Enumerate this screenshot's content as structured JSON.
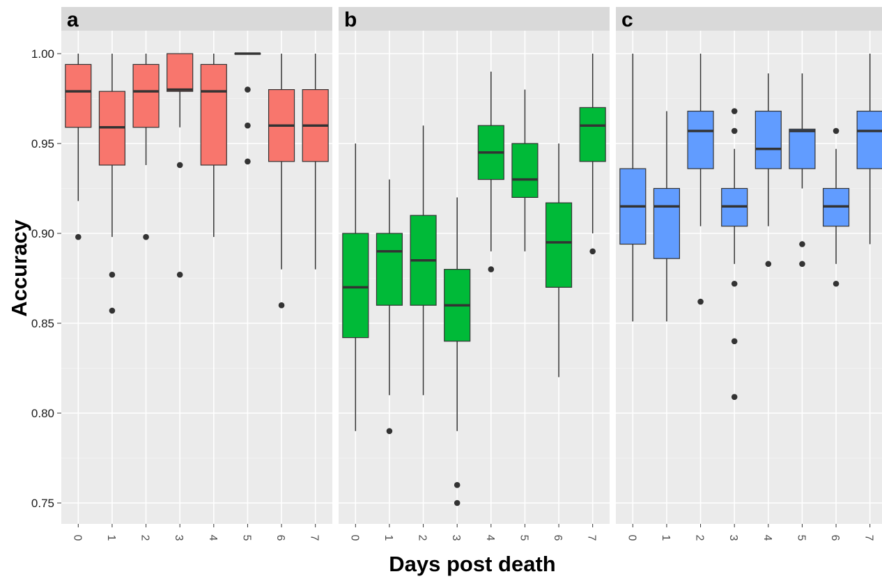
{
  "chart_data": {
    "type": "box",
    "xlabel": "Days post death",
    "ylabel": "Accuracy",
    "ylim": [
      0.74,
      1.025
    ],
    "yticks": [
      0.75,
      0.8,
      0.85,
      0.9,
      0.95,
      1.0
    ],
    "ytick_labels": [
      "0.75",
      "0.80",
      "0.85",
      "0.90",
      "0.95",
      "1.00"
    ],
    "categories": [
      "0",
      "1",
      "2",
      "3",
      "4",
      "5",
      "6",
      "7"
    ],
    "grid": true,
    "panels": [
      {
        "label": "a",
        "color": "#F8766D",
        "boxes": [
          {
            "x": "0",
            "whisker_low": 0.918,
            "q1": 0.959,
            "median": 0.979,
            "q3": 0.994,
            "whisker_high": 1.0,
            "outliers": [
              0.898
            ]
          },
          {
            "x": "1",
            "whisker_low": 0.898,
            "q1": 0.938,
            "median": 0.959,
            "q3": 0.979,
            "whisker_high": 1.0,
            "outliers": [
              0.877,
              0.857
            ]
          },
          {
            "x": "2",
            "whisker_low": 0.938,
            "q1": 0.959,
            "median": 0.979,
            "q3": 0.994,
            "whisker_high": 1.0,
            "outliers": [
              0.898
            ]
          },
          {
            "x": "3",
            "whisker_low": 0.959,
            "q1": 0.979,
            "median": 0.98,
            "q3": 1.0,
            "whisker_high": 1.0,
            "outliers": [
              0.938,
              0.877
            ]
          },
          {
            "x": "4",
            "whisker_low": 0.898,
            "q1": 0.938,
            "median": 0.979,
            "q3": 0.994,
            "whisker_high": 1.0,
            "outliers": []
          },
          {
            "x": "5",
            "whisker_low": 1.0,
            "q1": 1.0,
            "median": 1.0,
            "q3": 1.0,
            "whisker_high": 1.0,
            "outliers": [
              0.98,
              0.96,
              0.94
            ]
          },
          {
            "x": "6",
            "whisker_low": 0.88,
            "q1": 0.94,
            "median": 0.96,
            "q3": 0.98,
            "whisker_high": 1.0,
            "outliers": [
              0.86
            ]
          },
          {
            "x": "7",
            "whisker_low": 0.88,
            "q1": 0.94,
            "median": 0.96,
            "q3": 0.98,
            "whisker_high": 1.0,
            "outliers": []
          }
        ]
      },
      {
        "label": "b",
        "color": "#00BA38",
        "boxes": [
          {
            "x": "0",
            "whisker_low": 0.79,
            "q1": 0.842,
            "median": 0.87,
            "q3": 0.9,
            "whisker_high": 0.95,
            "outliers": []
          },
          {
            "x": "1",
            "whisker_low": 0.81,
            "q1": 0.86,
            "median": 0.89,
            "q3": 0.9,
            "whisker_high": 0.93,
            "outliers": [
              0.79
            ]
          },
          {
            "x": "2",
            "whisker_low": 0.81,
            "q1": 0.86,
            "median": 0.885,
            "q3": 0.91,
            "whisker_high": 0.96,
            "outliers": []
          },
          {
            "x": "3",
            "whisker_low": 0.79,
            "q1": 0.84,
            "median": 0.86,
            "q3": 0.88,
            "whisker_high": 0.92,
            "outliers": [
              0.76,
              0.75
            ]
          },
          {
            "x": "4",
            "whisker_low": 0.89,
            "q1": 0.93,
            "median": 0.945,
            "q3": 0.96,
            "whisker_high": 0.99,
            "outliers": [
              0.88
            ]
          },
          {
            "x": "5",
            "whisker_low": 0.89,
            "q1": 0.92,
            "median": 0.93,
            "q3": 0.95,
            "whisker_high": 0.98,
            "outliers": []
          },
          {
            "x": "6",
            "whisker_low": 0.82,
            "q1": 0.87,
            "median": 0.895,
            "q3": 0.917,
            "whisker_high": 0.95,
            "outliers": []
          },
          {
            "x": "7",
            "whisker_low": 0.9,
            "q1": 0.94,
            "median": 0.96,
            "q3": 0.97,
            "whisker_high": 1.0,
            "outliers": [
              0.89
            ]
          }
        ]
      },
      {
        "label": "c",
        "color": "#619CFF",
        "boxes": [
          {
            "x": "0",
            "whisker_low": 0.851,
            "q1": 0.894,
            "median": 0.915,
            "q3": 0.936,
            "whisker_high": 1.0,
            "outliers": []
          },
          {
            "x": "1",
            "whisker_low": 0.851,
            "q1": 0.886,
            "median": 0.915,
            "q3": 0.925,
            "whisker_high": 0.968,
            "outliers": []
          },
          {
            "x": "2",
            "whisker_low": 0.904,
            "q1": 0.936,
            "median": 0.957,
            "q3": 0.968,
            "whisker_high": 1.0,
            "outliers": [
              0.862
            ]
          },
          {
            "x": "3",
            "whisker_low": 0.883,
            "q1": 0.904,
            "median": 0.915,
            "q3": 0.925,
            "whisker_high": 0.947,
            "outliers": [
              0.968,
              0.957,
              0.872,
              0.84,
              0.809
            ]
          },
          {
            "x": "4",
            "whisker_low": 0.904,
            "q1": 0.936,
            "median": 0.947,
            "q3": 0.968,
            "whisker_high": 0.989,
            "outliers": [
              0.883
            ]
          },
          {
            "x": "5",
            "whisker_low": 0.925,
            "q1": 0.936,
            "median": 0.957,
            "q3": 0.958,
            "whisker_high": 0.989,
            "outliers": [
              0.894,
              0.883
            ]
          },
          {
            "x": "6",
            "whisker_low": 0.883,
            "q1": 0.904,
            "median": 0.915,
            "q3": 0.925,
            "whisker_high": 0.947,
            "outliers": [
              0.957,
              0.872
            ]
          },
          {
            "x": "7",
            "whisker_low": 0.894,
            "q1": 0.936,
            "median": 0.957,
            "q3": 0.968,
            "whisker_high": 1.0,
            "outliers": []
          }
        ]
      }
    ]
  }
}
